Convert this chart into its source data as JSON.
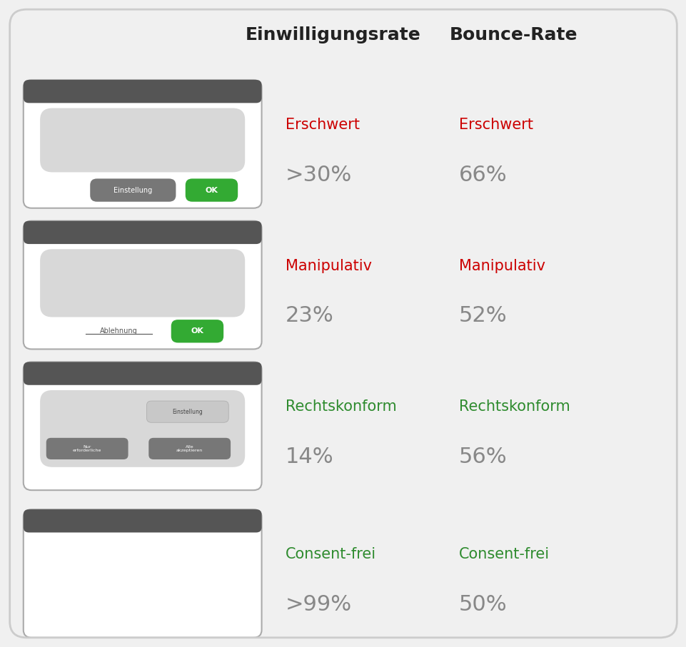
{
  "title_left": "Einwilligungsrate",
  "title_right": "Bounce-Rate",
  "rows": [
    {
      "label_type": "Erschwert",
      "label_color_left": "#cc0000",
      "label_color_right": "#cc0000",
      "value_left": ">30%",
      "value_right": "66%",
      "banner_type": "erschwert"
    },
    {
      "label_type": "Manipulativ",
      "label_color_left": "#cc0000",
      "label_color_right": "#cc0000",
      "value_left": "23%",
      "value_right": "52%",
      "banner_type": "manipulativ"
    },
    {
      "label_type": "Rechtskonform",
      "label_color_left": "#2e8b2e",
      "label_color_right": "#2e8b2e",
      "value_left": "14%",
      "value_right": "56%",
      "banner_type": "rechtskonform"
    },
    {
      "label_type": "Consent-frei",
      "label_color_left": "#2e8b2e",
      "label_color_right": "#2e8b2e",
      "value_left": ">99%",
      "value_right": "50%",
      "banner_type": "consent_frei"
    }
  ],
  "outer_bg": "#f0f0f0",
  "banner_bg": "#ffffff",
  "banner_header_color": "#555555",
  "banner_border_color": "#aaaaaa",
  "inner_box_color": "#d8d8d8",
  "gray_btn_color": "#777777",
  "green_btn_color": "#33aa33",
  "value_color": "#888888",
  "title_fontsize": 18,
  "label_fontsize": 15,
  "value_fontsize": 22
}
